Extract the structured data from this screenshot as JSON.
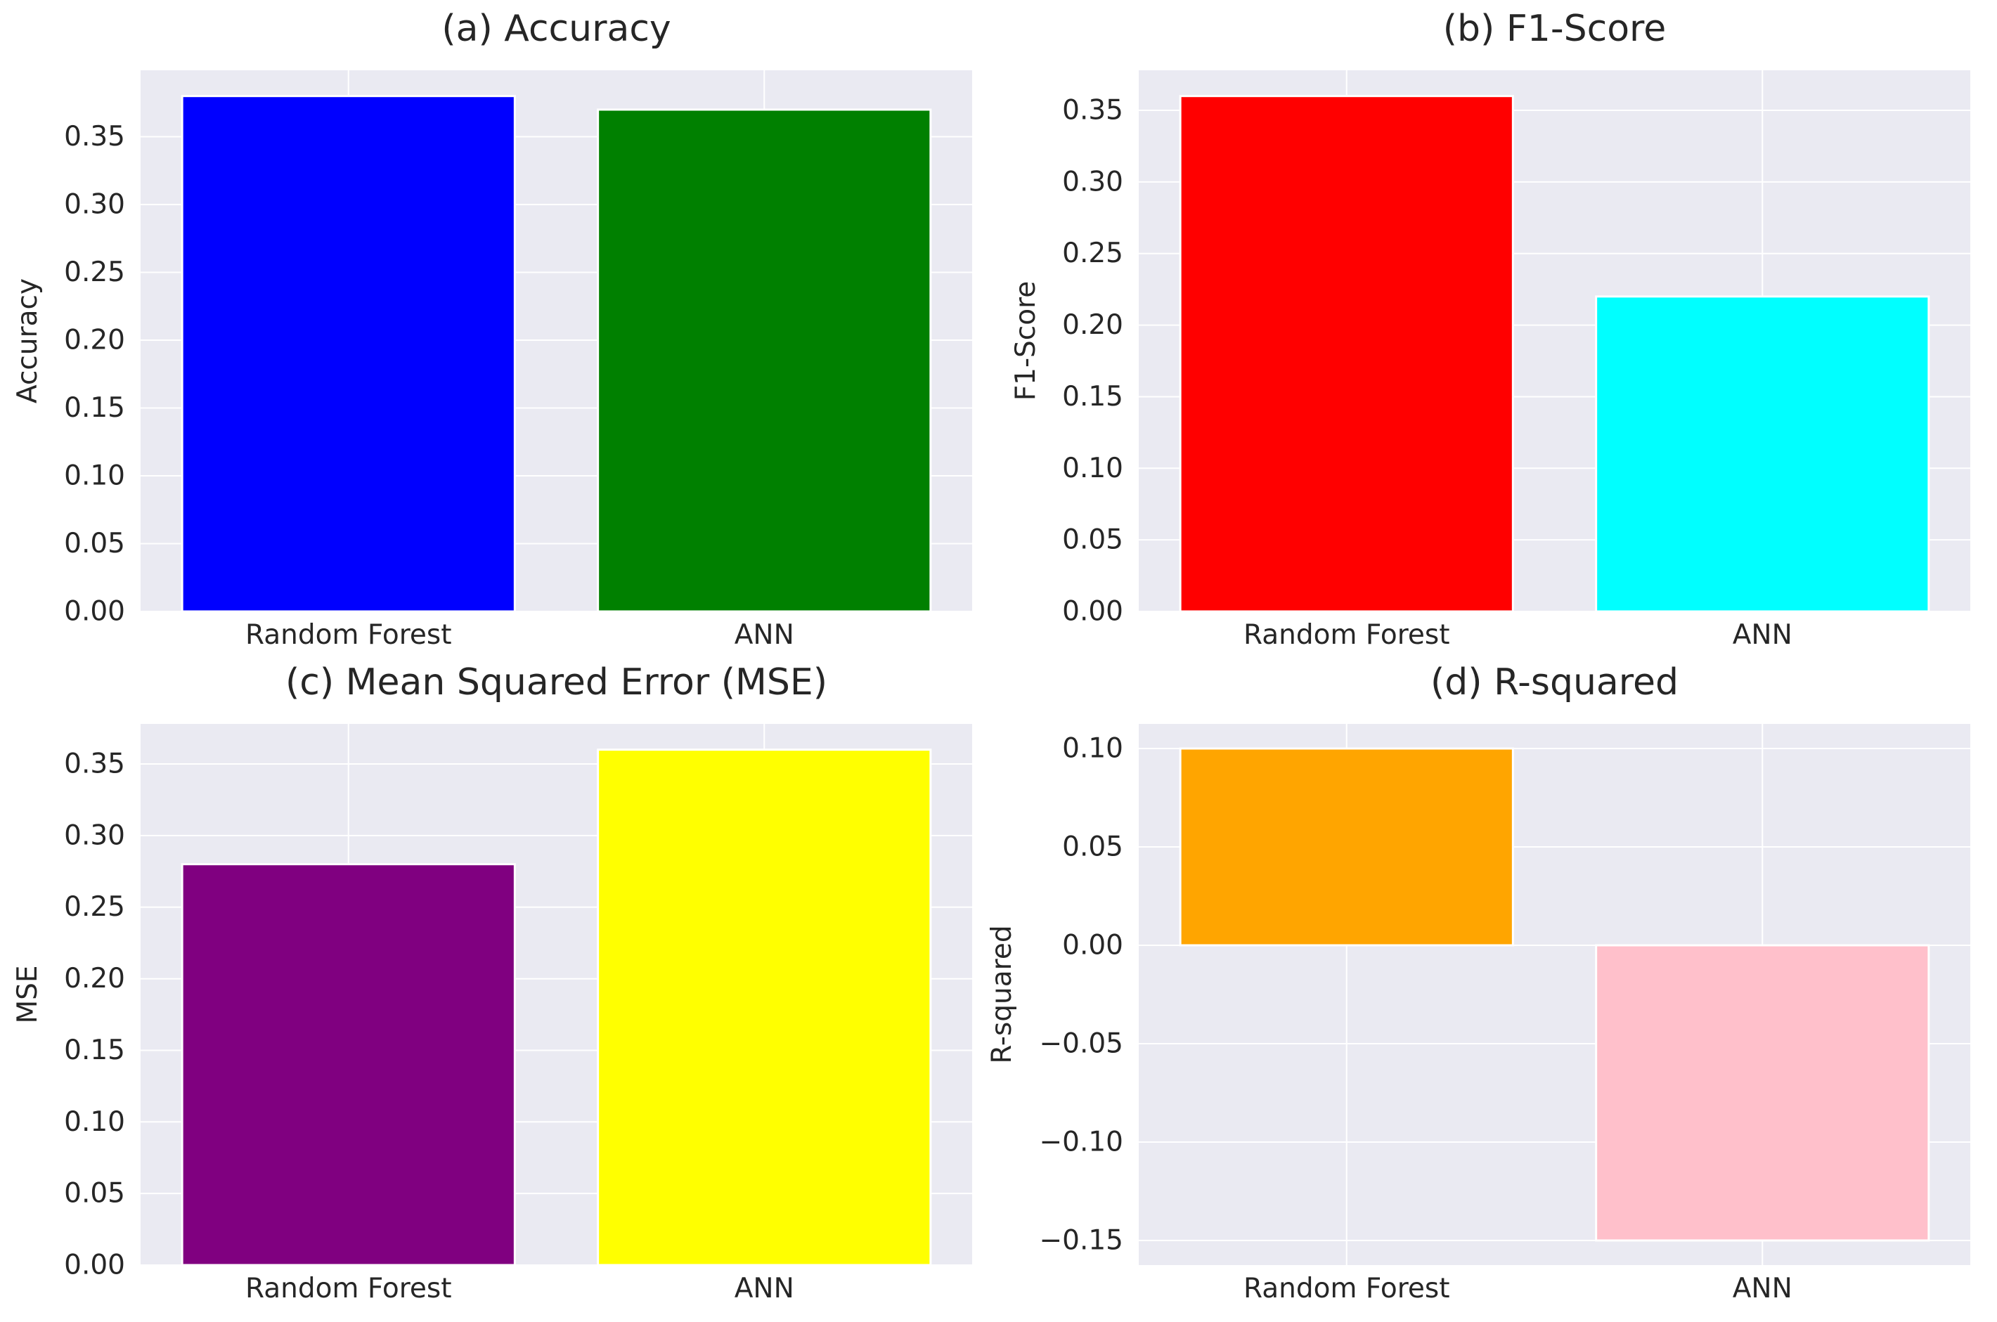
{
  "chart_data": [
    {
      "type": "bar",
      "title": "(a) Accuracy",
      "ylabel": "Accuracy",
      "xlabel": "",
      "categories": [
        "Random Forest",
        "ANN"
      ],
      "values": [
        0.38,
        0.37
      ],
      "colors": [
        "#0000ff",
        "#008000"
      ],
      "ylim": [
        0,
        0.399
      ],
      "yticks": [
        0.0,
        0.05,
        0.1,
        0.15,
        0.2,
        0.25,
        0.3,
        0.35
      ],
      "ytick_labels": [
        "0.00",
        "0.05",
        "0.10",
        "0.15",
        "0.20",
        "0.25",
        "0.30",
        "0.35"
      ],
      "grid": true
    },
    {
      "type": "bar",
      "title": "(b) F1-Score",
      "ylabel": "F1-Score",
      "xlabel": "",
      "categories": [
        "Random Forest",
        "ANN"
      ],
      "values": [
        0.36,
        0.22
      ],
      "colors": [
        "#ff0000",
        "#00ffff"
      ],
      "ylim": [
        0,
        0.378
      ],
      "yticks": [
        0.0,
        0.05,
        0.1,
        0.15,
        0.2,
        0.25,
        0.3,
        0.35
      ],
      "ytick_labels": [
        "0.00",
        "0.05",
        "0.10",
        "0.15",
        "0.20",
        "0.25",
        "0.30",
        "0.35"
      ],
      "grid": true
    },
    {
      "type": "bar",
      "title": "(c) Mean Squared Error (MSE)",
      "ylabel": "MSE",
      "xlabel": "",
      "categories": [
        "Random Forest",
        "ANN"
      ],
      "values": [
        0.28,
        0.36
      ],
      "colors": [
        "#800080",
        "#ffff00"
      ],
      "ylim": [
        0,
        0.378
      ],
      "yticks": [
        0.0,
        0.05,
        0.1,
        0.15,
        0.2,
        0.25,
        0.3,
        0.35
      ],
      "ytick_labels": [
        "0.00",
        "0.05",
        "0.10",
        "0.15",
        "0.20",
        "0.25",
        "0.30",
        "0.35"
      ],
      "grid": true
    },
    {
      "type": "bar",
      "title": "(d) R-squared",
      "ylabel": "R-squared",
      "xlabel": "",
      "categories": [
        "Random Forest",
        "ANN"
      ],
      "values": [
        0.1,
        -0.15
      ],
      "colors": [
        "#ffa500",
        "#ffc0cb"
      ],
      "ylim": [
        -0.1625,
        0.1125
      ],
      "yticks": [
        -0.15,
        -0.1,
        -0.05,
        0.0,
        0.05,
        0.1
      ],
      "ytick_labels": [
        "−0.15",
        "−0.10",
        "−0.05",
        "0.00",
        "0.05",
        "0.10"
      ],
      "grid": true
    }
  ]
}
